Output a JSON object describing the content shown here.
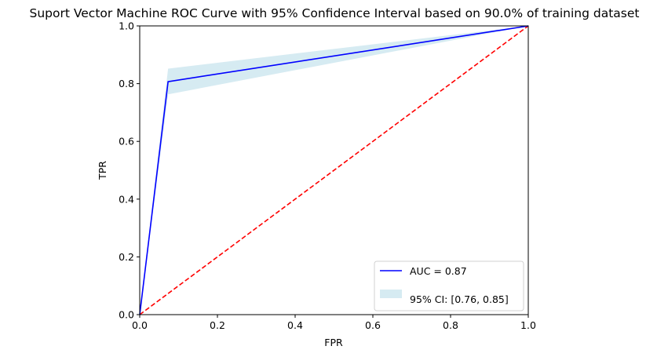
{
  "chart_data": {
    "type": "line",
    "title": "Suport Vector Machine ROC Curve with 95% Confidence Interval based on 90.0% of training dataset",
    "xlabel": "FPR",
    "ylabel": "TPR",
    "xlim": [
      0,
      1
    ],
    "ylim": [
      0,
      1
    ],
    "x_ticks": [
      "0.0",
      "0.2",
      "0.4",
      "0.6",
      "0.8",
      "1.0"
    ],
    "y_ticks": [
      "0.0",
      "0.2",
      "0.4",
      "0.6",
      "0.8",
      "1.0"
    ],
    "grid": false,
    "legend_position": "lower right",
    "series": [
      {
        "name": "AUC = 0.87",
        "kind": "line",
        "color": "#0000ff",
        "x": [
          0.0,
          0.073,
          1.0
        ],
        "y": [
          0.0,
          0.807,
          1.0
        ]
      },
      {
        "name": "95% CI: [0.76, 0.85]",
        "kind": "band",
        "color": "#add8e6",
        "x": [
          0.0,
          0.073,
          1.0
        ],
        "y_lower": [
          0.0,
          0.763,
          1.0
        ],
        "y_upper": [
          0.0,
          0.852,
          1.0
        ]
      },
      {
        "kind": "diagonal",
        "color": "#ff0000",
        "x": [
          0.0,
          1.0
        ],
        "y": [
          0.0,
          1.0
        ]
      }
    ]
  }
}
